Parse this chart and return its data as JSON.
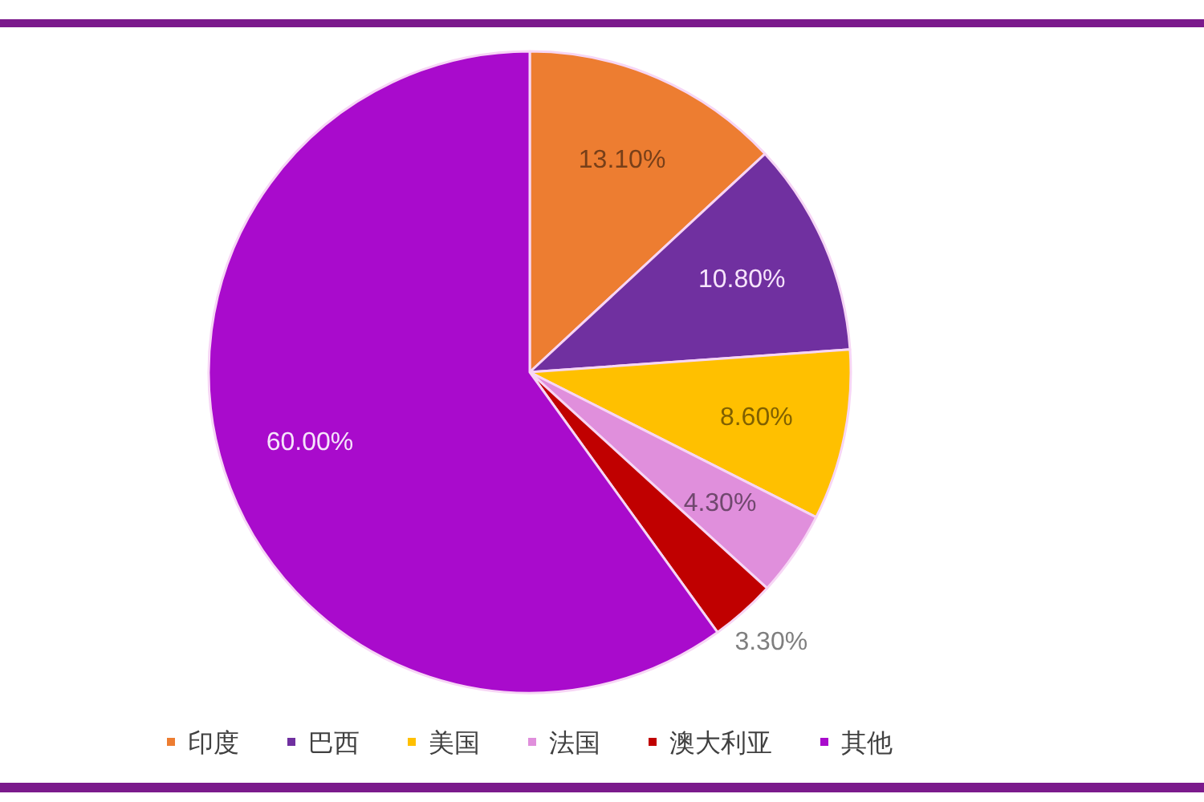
{
  "chart_data": {
    "type": "pie",
    "categories": [
      "印度",
      "巴西",
      "美国",
      "法国",
      "澳大利亚",
      "其他"
    ],
    "values": [
      13.1,
      10.8,
      8.6,
      4.3,
      3.3,
      60.0
    ],
    "value_labels": [
      "13.10%",
      "10.80%",
      "8.60%",
      "4.30%",
      "3.30%",
      "60.00%"
    ],
    "colors": [
      "#ed7d31",
      "#7030a0",
      "#ffc000",
      "#e08fdc",
      "#c00000",
      "#a90bcc"
    ],
    "legend": "bottom"
  }
}
